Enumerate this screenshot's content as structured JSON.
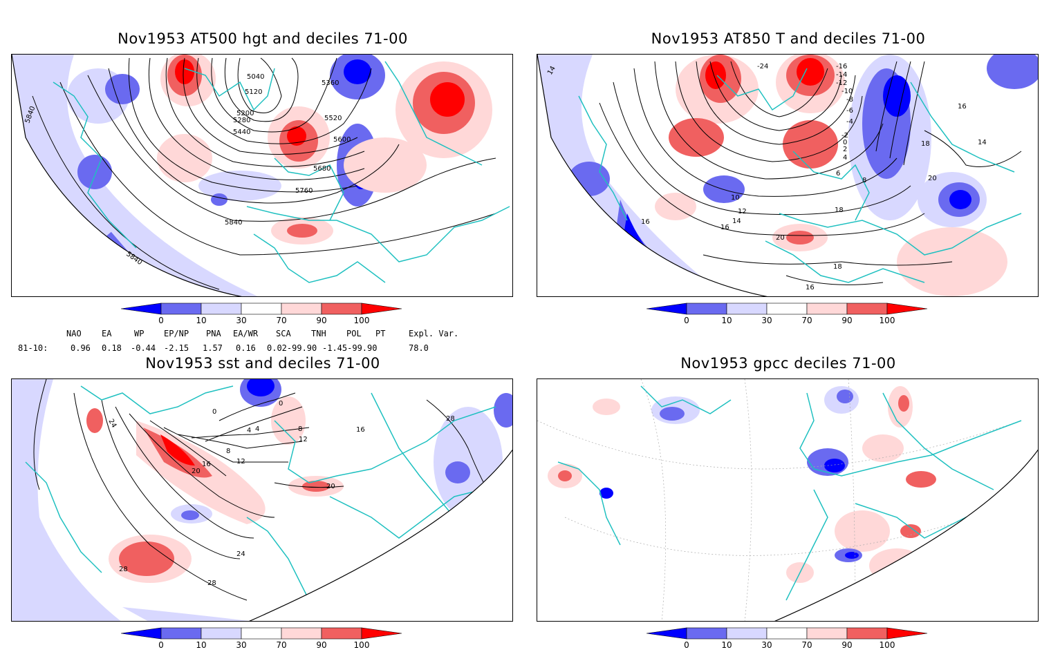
{
  "panels": [
    {
      "title": "Nov1953 AT500 hgt and deciles 71-00",
      "contour_labels": [
        "5040",
        "5120",
        "5200",
        "5280",
        "5360",
        "5440",
        "5520",
        "5600",
        "5680",
        "5760",
        "5840",
        "5840",
        "5840"
      ]
    },
    {
      "title": "Nov1953 AT850 T and deciles 71-00",
      "contour_labels": [
        "-24",
        "-16",
        "-14",
        "-12",
        "-10",
        "-8",
        "-6",
        "-4",
        "-2",
        "0",
        "2",
        "4",
        "6",
        "8",
        "10",
        "12",
        "14",
        "16",
        "18",
        "20",
        "16",
        "18",
        "16",
        "14",
        "18",
        "20",
        "16",
        "14"
      ]
    },
    {
      "title": "Nov1953 sst and deciles 71-00",
      "contour_labels": [
        "0",
        "4",
        "8",
        "12",
        "16",
        "20",
        "24",
        "28",
        "28",
        "24",
        "28",
        "20",
        "16",
        "12",
        "8",
        "4",
        "0"
      ]
    },
    {
      "title": "Nov1953 gpcc deciles 71-00",
      "contour_labels": []
    }
  ],
  "colorbar": {
    "labels": [
      "0",
      "10",
      "30",
      "70",
      "90",
      "100"
    ],
    "colors": [
      "#0000ff",
      "#6a6af0",
      "#d8d8ff",
      "#ffffff",
      "#ffd8d8",
      "#f06060",
      "#ff0000"
    ]
  },
  "indices": {
    "headers": [
      "NAO",
      "EA",
      "WP",
      "EP/NP",
      "PNA",
      "EA/WR",
      "SCA",
      "TNH",
      "POL",
      "PT",
      "Expl. Var."
    ],
    "row_label": "81-10:",
    "values": [
      "0.96",
      "0.18",
      "-0.44",
      "-2.15",
      "1.57",
      "0.16",
      "0.02-99.90",
      "-1.45-99.90",
      "78.0"
    ]
  }
}
